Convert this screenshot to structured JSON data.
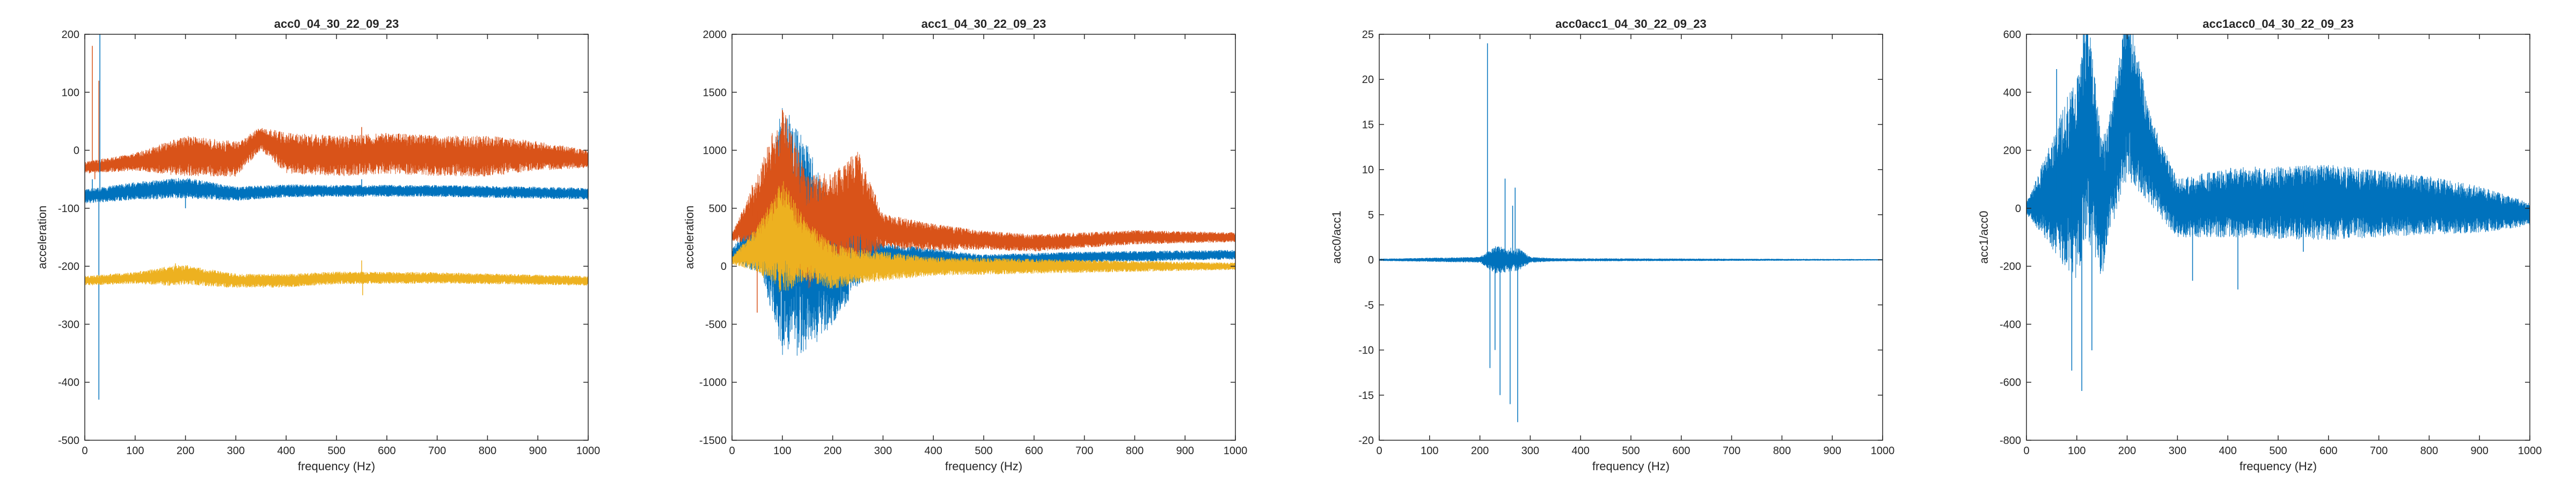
{
  "chart_data": [
    {
      "type": "line",
      "title": "acc0_04_30_22_09_23",
      "xlabel": "frequency (Hz)",
      "ylabel": "acceleration",
      "xlim": [
        0,
        1000
      ],
      "ylim": [
        -500,
        200
      ],
      "x_ticks": [
        0,
        100,
        200,
        300,
        400,
        500,
        600,
        700,
        800,
        900,
        1000
      ],
      "y_ticks": [
        200,
        100,
        0,
        -100,
        -200,
        -300,
        -400,
        -500
      ],
      "grid": false,
      "series": [
        {
          "color": "#D95319",
          "center": [
            [
              0,
              -30
            ],
            [
              100,
              -20
            ],
            [
              200,
              -10
            ],
            [
              300,
              -15
            ],
            [
              350,
              20
            ],
            [
              400,
              -5
            ],
            [
              500,
              -10
            ],
            [
              600,
              -5
            ],
            [
              700,
              -10
            ],
            [
              800,
              -10
            ],
            [
              900,
              -10
            ],
            [
              1000,
              -15
            ]
          ],
          "halfwidth": [
            [
              0,
              10
            ],
            [
              100,
              15
            ],
            [
              200,
              35
            ],
            [
              300,
              30
            ],
            [
              350,
              20
            ],
            [
              400,
              35
            ],
            [
              600,
              35
            ],
            [
              800,
              35
            ],
            [
              900,
              25
            ],
            [
              1000,
              15
            ]
          ],
          "spikes": [
            [
              15,
              180
            ],
            [
              20,
              -50
            ],
            [
              28,
              120
            ],
            [
              35,
              -20
            ],
            [
              550,
              40
            ]
          ]
        },
        {
          "color": "#0072BD",
          "center": [
            [
              0,
              -80
            ],
            [
              100,
              -70
            ],
            [
              200,
              -65
            ],
            [
              300,
              -75
            ],
            [
              400,
              -70
            ],
            [
              500,
              -70
            ],
            [
              700,
              -70
            ],
            [
              1000,
              -75
            ]
          ],
          "halfwidth": [
            [
              0,
              12
            ],
            [
              100,
              15
            ],
            [
              200,
              18
            ],
            [
              300,
              12
            ],
            [
              500,
              10
            ],
            [
              1000,
              10
            ]
          ],
          "spikes": [
            [
              28,
              -430
            ],
            [
              30,
              200
            ],
            [
              15,
              -50
            ],
            [
              200,
              -100
            ],
            [
              550,
              -50
            ]
          ]
        },
        {
          "color": "#EDB120",
          "center": [
            [
              0,
              -225
            ],
            [
              100,
              -220
            ],
            [
              200,
              -215
            ],
            [
              300,
              -225
            ],
            [
              400,
              -225
            ],
            [
              500,
              -220
            ],
            [
              700,
              -220
            ],
            [
              1000,
              -225
            ]
          ],
          "halfwidth": [
            [
              0,
              8
            ],
            [
              100,
              10
            ],
            [
              180,
              18
            ],
            [
              300,
              12
            ],
            [
              600,
              10
            ],
            [
              1000,
              8
            ]
          ],
          "spikes": [
            [
              550,
              -190
            ],
            [
              552,
              -250
            ],
            [
              180,
              -195
            ]
          ]
        }
      ]
    },
    {
      "type": "line",
      "title": "acc1_04_30_22_09_23",
      "xlabel": "frequency (Hz)",
      "ylabel": "acceleration",
      "xlim": [
        0,
        1000
      ],
      "ylim": [
        -1500,
        2000
      ],
      "x_ticks": [
        0,
        100,
        200,
        300,
        400,
        500,
        600,
        700,
        800,
        900,
        1000
      ],
      "y_ticks": [
        2000,
        1500,
        1000,
        500,
        0,
        -500,
        -1000,
        -1500
      ],
      "grid": false,
      "series": [
        {
          "color": "#0072BD",
          "center": [
            [
              0,
              100
            ],
            [
              100,
              300
            ],
            [
              200,
              0
            ],
            [
              250,
              150
            ],
            [
              300,
              100
            ],
            [
              500,
              50
            ],
            [
              700,
              80
            ],
            [
              1000,
              100
            ]
          ],
          "halfwidth": [
            [
              0,
              50
            ],
            [
              60,
              300
            ],
            [
              100,
              1100
            ],
            [
              150,
              900
            ],
            [
              200,
              500
            ],
            [
              230,
              400
            ],
            [
              300,
              100
            ],
            [
              500,
              50
            ],
            [
              1000,
              40
            ]
          ],
          "spikes": []
        },
        {
          "color": "#D95319",
          "center": [
            [
              0,
              250
            ],
            [
              100,
              700
            ],
            [
              150,
              300
            ],
            [
              200,
              400
            ],
            [
              250,
              500
            ],
            [
              300,
              300
            ],
            [
              400,
              250
            ],
            [
              600,
              200
            ],
            [
              800,
              250
            ],
            [
              1000,
              250
            ]
          ],
          "halfwidth": [
            [
              0,
              30
            ],
            [
              50,
              300
            ],
            [
              100,
              700
            ],
            [
              150,
              500
            ],
            [
              200,
              400
            ],
            [
              250,
              500
            ],
            [
              300,
              150
            ],
            [
              500,
              80
            ],
            [
              800,
              60
            ],
            [
              1000,
              40
            ]
          ],
          "spikes": [
            [
              40,
              700
            ],
            [
              50,
              -400
            ]
          ]
        },
        {
          "color": "#EDB120",
          "center": [
            [
              0,
              50
            ],
            [
              100,
              250
            ],
            [
              200,
              0
            ],
            [
              300,
              0
            ],
            [
              500,
              0
            ],
            [
              1000,
              0
            ]
          ],
          "halfwidth": [
            [
              0,
              30
            ],
            [
              50,
              200
            ],
            [
              100,
              500
            ],
            [
              150,
              250
            ],
            [
              250,
              150
            ],
            [
              400,
              80
            ],
            [
              1000,
              30
            ]
          ],
          "spikes": []
        }
      ]
    },
    {
      "type": "line",
      "title": "acc0acc1_04_30_22_09_23",
      "xlabel": "frequency (Hz)",
      "ylabel": "acc0/acc1",
      "xlim": [
        0,
        1000
      ],
      "ylim": [
        -20,
        25
      ],
      "x_ticks": [
        0,
        100,
        200,
        300,
        400,
        500,
        600,
        700,
        800,
        900,
        1000
      ],
      "y_ticks": [
        25,
        20,
        15,
        10,
        5,
        0,
        -5,
        -10,
        -15,
        -20
      ],
      "grid": false,
      "series": [
        {
          "color": "#0072BD",
          "center": [
            [
              0,
              0
            ],
            [
              1000,
              0
            ]
          ],
          "halfwidth": [
            [
              0,
              0.1
            ],
            [
              200,
              0.3
            ],
            [
              230,
              1.5
            ],
            [
              280,
              1.2
            ],
            [
              300,
              0.3
            ],
            [
              350,
              0.15
            ],
            [
              1000,
              0.05
            ]
          ],
          "spikes": [
            [
              215,
              24
            ],
            [
              220,
              -12
            ],
            [
              240,
              -15
            ],
            [
              250,
              9
            ],
            [
              260,
              -16
            ],
            [
              270,
              8
            ],
            [
              275,
              -18
            ],
            [
              230,
              -10
            ],
            [
              265,
              6
            ]
          ]
        }
      ]
    },
    {
      "type": "line",
      "title": "acc1acc0_04_30_22_09_23",
      "xlabel": "frequency (Hz)",
      "ylabel": "acc1/acc0",
      "xlim": [
        0,
        1000
      ],
      "ylim": [
        -800,
        600
      ],
      "x_ticks": [
        0,
        100,
        200,
        300,
        400,
        500,
        600,
        700,
        800,
        900,
        1000
      ],
      "y_ticks": [
        600,
        400,
        200,
        0,
        -200,
        -400,
        -600,
        -800
      ],
      "grid": false,
      "series": [
        {
          "color": "#0072BD",
          "center": [
            [
              0,
              0
            ],
            [
              100,
              100
            ],
            [
              120,
              300
            ],
            [
              150,
              0
            ],
            [
              200,
              400
            ],
            [
              250,
              150
            ],
            [
              300,
              0
            ],
            [
              400,
              20
            ],
            [
              600,
              20
            ],
            [
              800,
              10
            ],
            [
              1000,
              -20
            ]
          ],
          "halfwidth": [
            [
              0,
              20
            ],
            [
              40,
              150
            ],
            [
              80,
              300
            ],
            [
              120,
              400
            ],
            [
              160,
              200
            ],
            [
              200,
              300
            ],
            [
              250,
              150
            ],
            [
              300,
              100
            ],
            [
              400,
              120
            ],
            [
              600,
              130
            ],
            [
              800,
              100
            ],
            [
              900,
              80
            ],
            [
              1000,
              40
            ]
          ],
          "spikes": [
            [
              110,
              -630
            ],
            [
              90,
              -560
            ],
            [
              130,
              -490
            ],
            [
              60,
              480
            ],
            [
              120,
              510
            ],
            [
              200,
              520
            ],
            [
              330,
              -250
            ],
            [
              420,
              -280
            ],
            [
              550,
              -150
            ]
          ]
        }
      ]
    }
  ]
}
